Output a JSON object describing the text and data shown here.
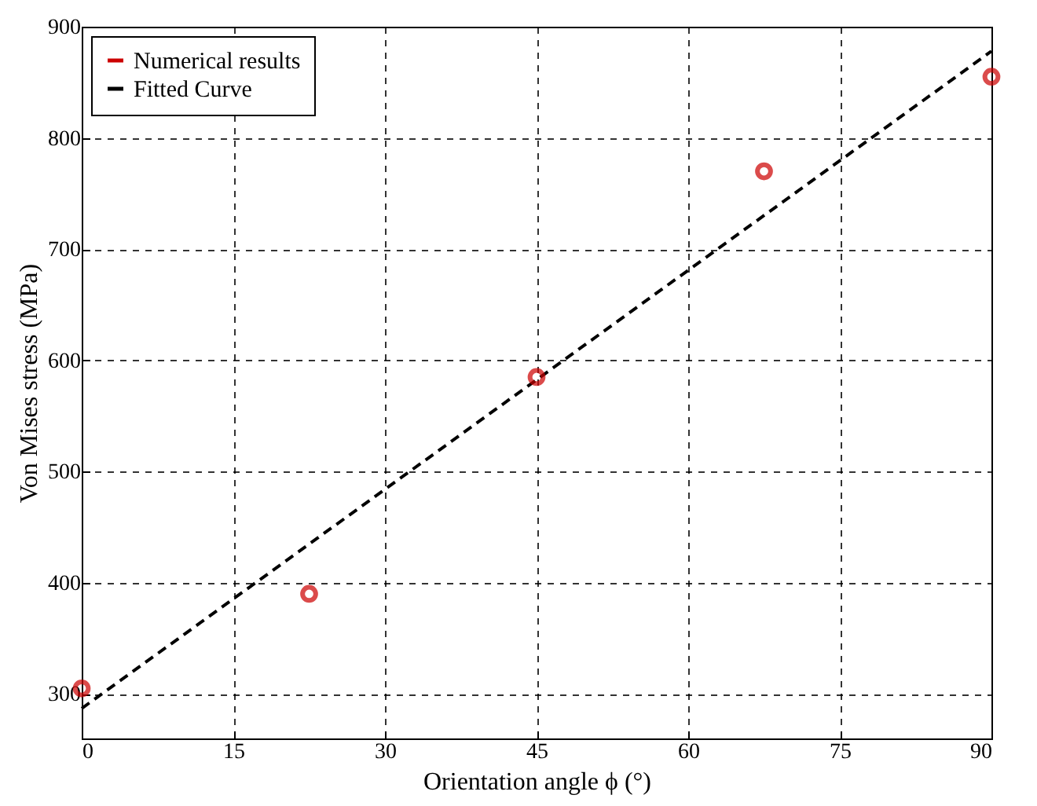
{
  "chart_data": {
    "type": "scatter",
    "xlabel": "Orientation angle ϕ (°)",
    "ylabel": "Von Mises stress (MPa)",
    "series": [
      {
        "name": "Numerical results",
        "marker": "circle",
        "color": "#cc0000",
        "x": [
          0,
          22.5,
          45,
          67.5,
          90
        ],
        "values": [
          305,
          390,
          585,
          770,
          855
        ]
      },
      {
        "name": "Fitted Curve",
        "type": "line",
        "color": "#000000",
        "x": [
          0,
          90
        ],
        "values": [
          287,
          878
        ]
      }
    ],
    "xlim": [
      0,
      90
    ],
    "xticks": [
      0,
      15,
      30,
      45,
      60,
      75,
      90
    ],
    "ylim": [
      260,
      900
    ],
    "yticks": [
      300,
      400,
      500,
      600,
      700,
      800,
      900
    ],
    "grid": true,
    "legend": "top left",
    "line_style": "dashed"
  }
}
